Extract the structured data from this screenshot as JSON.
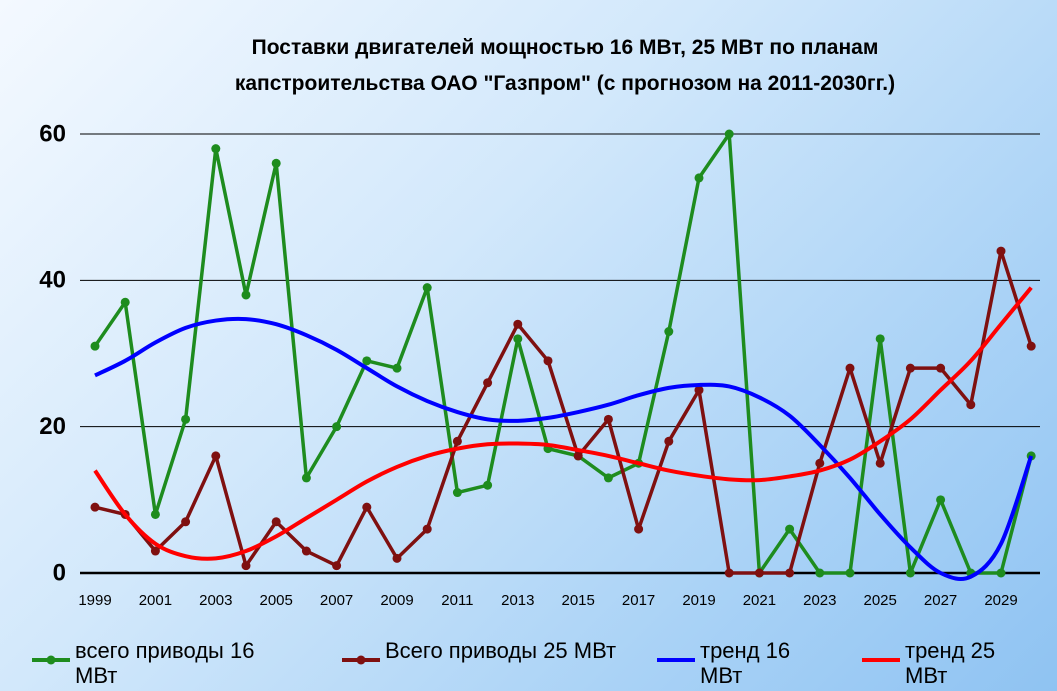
{
  "chart_data": {
    "type": "line",
    "title": "Поставки двигателей мощностью 16 МВт, 25 МВт  по планам капстроительства ОАО \"Газпром\" (с прогнозом на 2011-2030гг.)",
    "categories": [
      "1999",
      null,
      "2001",
      null,
      "2003",
      null,
      "2005",
      null,
      "2007",
      null,
      "2009",
      null,
      "2011",
      null,
      "2013",
      null,
      "2015",
      null,
      "2017",
      null,
      "2019",
      null,
      "2021",
      null,
      "2023",
      null,
      "2025",
      null,
      "2027",
      null,
      "2029",
      null
    ],
    "ylim": [
      0,
      60
    ],
    "yticks": [
      0,
      20,
      40,
      60
    ],
    "grid": true,
    "legend": "bottom",
    "series": [
      {
        "name": "всего приводы 16 МВт",
        "color": "#1e8c1e",
        "marker": true,
        "values": [
          31,
          37,
          8,
          21,
          58,
          38,
          56,
          13,
          20,
          29,
          28,
          39,
          11,
          12,
          32,
          17,
          16,
          13,
          15,
          33,
          54,
          60,
          0,
          6,
          0,
          0,
          32,
          0,
          10,
          0,
          0,
          16
        ]
      },
      {
        "name": "Всего приводы 25 МВт",
        "color": "#7f1010",
        "marker": true,
        "values": [
          9,
          8,
          3,
          7,
          16,
          1,
          7,
          3,
          1,
          9,
          2,
          6,
          18,
          26,
          34,
          29,
          16,
          21,
          6,
          18,
          25,
          0,
          0,
          0,
          15,
          28,
          15,
          28,
          28,
          23,
          44,
          31
        ]
      },
      {
        "name": "тренд 16 МВт",
        "color": "#0000ff",
        "marker": false,
        "smooth": true,
        "values": [
          27,
          29,
          31.5,
          33.5,
          34.5,
          34.7,
          34,
          32.5,
          30.5,
          28,
          25.5,
          23.5,
          22,
          21,
          20.8,
          21.2,
          22,
          23,
          24.3,
          25.3,
          25.7,
          25.5,
          24,
          21.5,
          17.5,
          13,
          8,
          3.5,
          0,
          -0.5,
          4,
          16
        ]
      },
      {
        "name": "тренд 25 МВт",
        "color": "#ff0000",
        "marker": false,
        "smooth": true,
        "values": [
          14,
          8,
          4,
          2.3,
          2,
          3,
          5,
          7.5,
          10,
          12.5,
          14.5,
          16,
          17,
          17.6,
          17.7,
          17.5,
          16.8,
          16,
          15,
          14,
          13.3,
          12.8,
          12.7,
          13.2,
          14,
          15.5,
          18,
          21,
          25,
          29,
          34,
          39
        ]
      }
    ]
  }
}
